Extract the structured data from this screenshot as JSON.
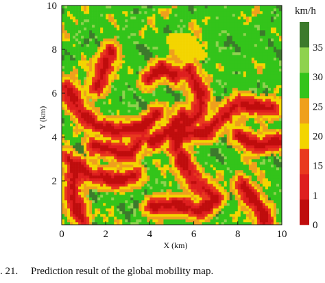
{
  "chart_data": {
    "type": "heatmap",
    "title": "",
    "xlabel": "X (km)",
    "ylabel": "Y (km)",
    "xlim": [
      0,
      10
    ],
    "ylim": [
      0,
      10
    ],
    "x_ticks": [
      "0",
      "2",
      "4",
      "6",
      "8",
      "10"
    ],
    "y_ticks": [
      "2",
      "4",
      "6",
      "8",
      "10"
    ],
    "colorbar": {
      "unit": "km/h",
      "tick_labels": [
        "0",
        "1",
        "15",
        "20",
        "25",
        "30",
        "35"
      ],
      "bins": [
        {
          "label": "0–5",
          "color": "#bf0d0d"
        },
        {
          "label": "5–10",
          "color": "#de1e1e"
        },
        {
          "label": "10–15",
          "color": "#e9391e"
        },
        {
          "label": "15–20",
          "color": "#f3d500"
        },
        {
          "label": "20–25",
          "color": "#efa01c"
        },
        {
          "label": "25–30",
          "color": "#33c41a"
        },
        {
          "label": "30–35",
          "color": "#8ed24e"
        },
        {
          "label": "35–40",
          "color": "#3c7a2c"
        }
      ]
    },
    "notes": "Spatially varying predicted mobility (speed) over a 10 km × 10 km area; low-speed red corridors along the left and center, high-speed greens elsewhere."
  },
  "caption": {
    "number": ". 21.",
    "text": "Prediction result of the global mobility map."
  }
}
